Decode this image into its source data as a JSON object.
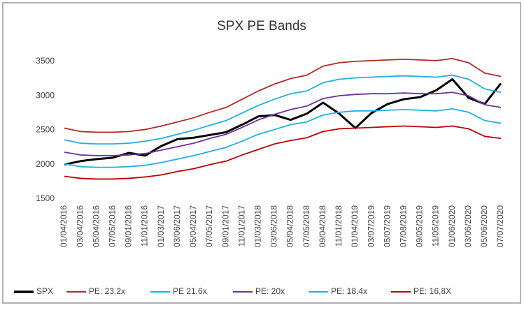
{
  "chart_data": {
    "type": "line",
    "title": "SPX  PE Bands",
    "categories": [
      "01/04/2016",
      "03/04/2016",
      "05/04/2016",
      "07/05/2016",
      "09/01/2016",
      "11/01/2016",
      "01/03/2017",
      "03/06/2017",
      "05/04/2017",
      "07/05/2017",
      "09/01/2017",
      "11/01/2017",
      "01/03/2018",
      "03/06/2018",
      "05/04/2018",
      "07/05/2018",
      "09/04/2018",
      "11/01/2018",
      "01/04/2019",
      "03/07/2019",
      "05/07/2019",
      "07/08/2019",
      "09/05/2019",
      "11/05/2019",
      "01/06/2020",
      "03/06/2020",
      "05/06/2020",
      "07/07/2020"
    ],
    "series": [
      {
        "name": "SPX",
        "color": "#000000",
        "values": [
          2000,
          2050,
          2080,
          2100,
          2170,
          2130,
          2270,
          2370,
          2390,
          2430,
          2470,
          2580,
          2700,
          2720,
          2650,
          2740,
          2900,
          2740,
          2530,
          2750,
          2880,
          2950,
          2980,
          3080,
          3240,
          2970,
          2880,
          3180
        ]
      },
      {
        "name": "PE: 23,2x",
        "color": "#b22a2a",
        "values": [
          2530,
          2480,
          2470,
          2470,
          2480,
          2510,
          2560,
          2620,
          2680,
          2760,
          2830,
          2950,
          3070,
          3170,
          3250,
          3300,
          3430,
          3480,
          3500,
          3510,
          3520,
          3530,
          3520,
          3510,
          3540,
          3480,
          3330,
          3280
        ]
      },
      {
        "name": "PE 21,6x",
        "color": "#1fb0e0",
        "values": [
          2360,
          2310,
          2300,
          2300,
          2310,
          2340,
          2380,
          2440,
          2500,
          2570,
          2640,
          2750,
          2860,
          2950,
          3030,
          3070,
          3190,
          3240,
          3260,
          3270,
          3280,
          3290,
          3280,
          3270,
          3300,
          3240,
          3100,
          3050
        ]
      },
      {
        "name": "PE: 20x",
        "color": "#7030a0",
        "values": [
          2180,
          2140,
          2130,
          2130,
          2140,
          2160,
          2210,
          2260,
          2310,
          2380,
          2440,
          2540,
          2650,
          2730,
          2800,
          2850,
          2960,
          3000,
          3020,
          3030,
          3030,
          3040,
          3030,
          3030,
          3050,
          3000,
          2870,
          2830
        ]
      },
      {
        "name": "PE: 18.4x",
        "color": "#1fb0e0",
        "values": [
          2010,
          1970,
          1960,
          1960,
          1970,
          1990,
          2030,
          2080,
          2130,
          2190,
          2250,
          2340,
          2440,
          2510,
          2580,
          2620,
          2720,
          2760,
          2780,
          2780,
          2790,
          2800,
          2790,
          2780,
          2810,
          2760,
          2640,
          2600
        ]
      },
      {
        "name": "PE: 16,8X",
        "color": "#c00000",
        "values": [
          1830,
          1800,
          1790,
          1790,
          1800,
          1820,
          1850,
          1900,
          1940,
          2000,
          2050,
          2140,
          2220,
          2300,
          2350,
          2390,
          2480,
          2520,
          2530,
          2540,
          2550,
          2560,
          2550,
          2540,
          2560,
          2520,
          2410,
          2380
        ]
      }
    ],
    "ylim": [
      1500,
      3600
    ],
    "yticks": [
      1500,
      2000,
      2500,
      3000,
      3500
    ],
    "grid": false,
    "legend": "bottom"
  }
}
